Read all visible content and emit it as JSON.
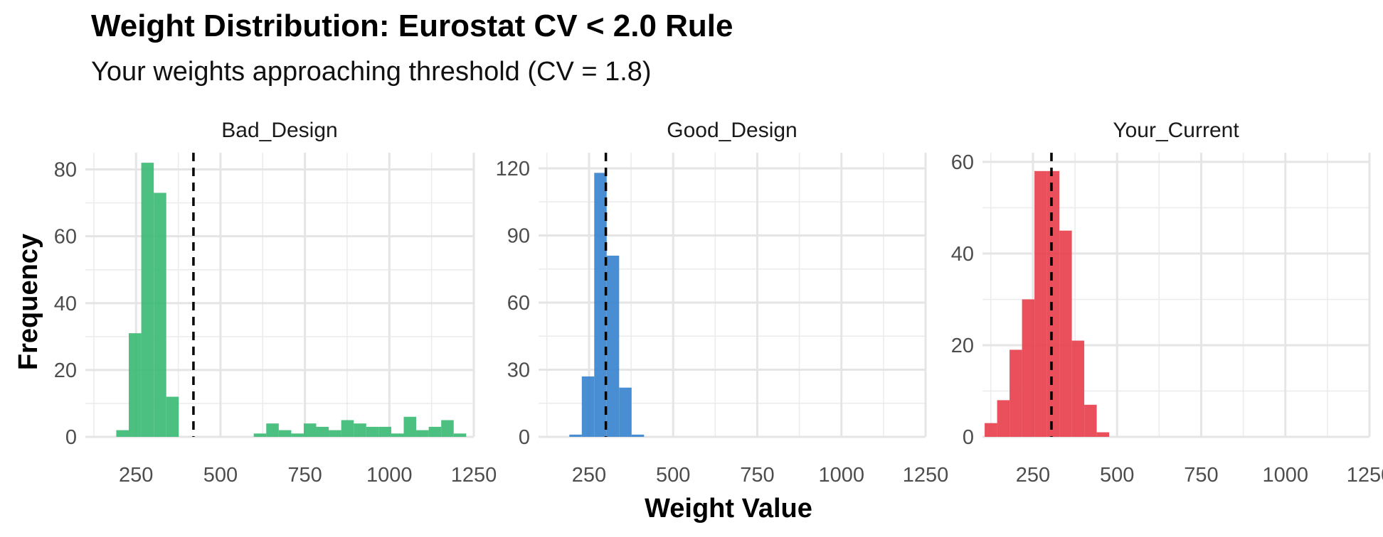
{
  "chart_data": {
    "type": "bar",
    "title": "Weight Distribution: Eurostat CV < 2.0 Rule",
    "subtitle": "Your weights approaching threshold (CV = 1.8)",
    "xlabel": "Weight Value",
    "ylabel": "Frequency",
    "xlim": [
      100,
      1250
    ],
    "x_ticks": [
      "250",
      "500",
      "750",
      "1000",
      "1250"
    ],
    "grid": true,
    "bin_width": 37,
    "panels": [
      {
        "name": "Bad_Design",
        "color": "#3CBB75",
        "ylim": [
          0,
          85
        ],
        "y_ticks": [
          "0",
          "20",
          "40",
          "60",
          "80"
        ],
        "mean_line": 420,
        "bins": [
          {
            "x": 210,
            "count": 2
          },
          {
            "x": 247,
            "count": 31
          },
          {
            "x": 284,
            "count": 82
          },
          {
            "x": 321,
            "count": 73
          },
          {
            "x": 358,
            "count": 12
          },
          {
            "x": 617,
            "count": 1
          },
          {
            "x": 654,
            "count": 4
          },
          {
            "x": 691,
            "count": 2
          },
          {
            "x": 728,
            "count": 1
          },
          {
            "x": 765,
            "count": 4
          },
          {
            "x": 802,
            "count": 3
          },
          {
            "x": 839,
            "count": 2
          },
          {
            "x": 876,
            "count": 5
          },
          {
            "x": 913,
            "count": 4
          },
          {
            "x": 950,
            "count": 3
          },
          {
            "x": 987,
            "count": 3
          },
          {
            "x": 1024,
            "count": 1
          },
          {
            "x": 1061,
            "count": 6
          },
          {
            "x": 1098,
            "count": 2
          },
          {
            "x": 1135,
            "count": 3
          },
          {
            "x": 1172,
            "count": 5
          },
          {
            "x": 1209,
            "count": 1
          }
        ]
      },
      {
        "name": "Good_Design",
        "color": "#3A84CF",
        "ylim": [
          0,
          127
        ],
        "y_ticks": [
          "0",
          "30",
          "60",
          "90",
          "120"
        ],
        "mean_line": 300,
        "bins": [
          {
            "x": 210,
            "count": 1
          },
          {
            "x": 247,
            "count": 27
          },
          {
            "x": 284,
            "count": 118
          },
          {
            "x": 321,
            "count": 81
          },
          {
            "x": 358,
            "count": 22
          },
          {
            "x": 395,
            "count": 1
          }
        ]
      },
      {
        "name": "Your_Current",
        "color": "#E8404E",
        "ylim": [
          0,
          62
        ],
        "y_ticks": [
          "0",
          "20",
          "40",
          "60"
        ],
        "mean_line": 305,
        "bins": [
          {
            "x": 125,
            "count": 3
          },
          {
            "x": 162,
            "count": 8
          },
          {
            "x": 199,
            "count": 19
          },
          {
            "x": 236,
            "count": 30
          },
          {
            "x": 273,
            "count": 58
          },
          {
            "x": 310,
            "count": 58
          },
          {
            "x": 347,
            "count": 45
          },
          {
            "x": 384,
            "count": 21
          },
          {
            "x": 421,
            "count": 7
          },
          {
            "x": 458,
            "count": 1
          }
        ]
      }
    ]
  }
}
